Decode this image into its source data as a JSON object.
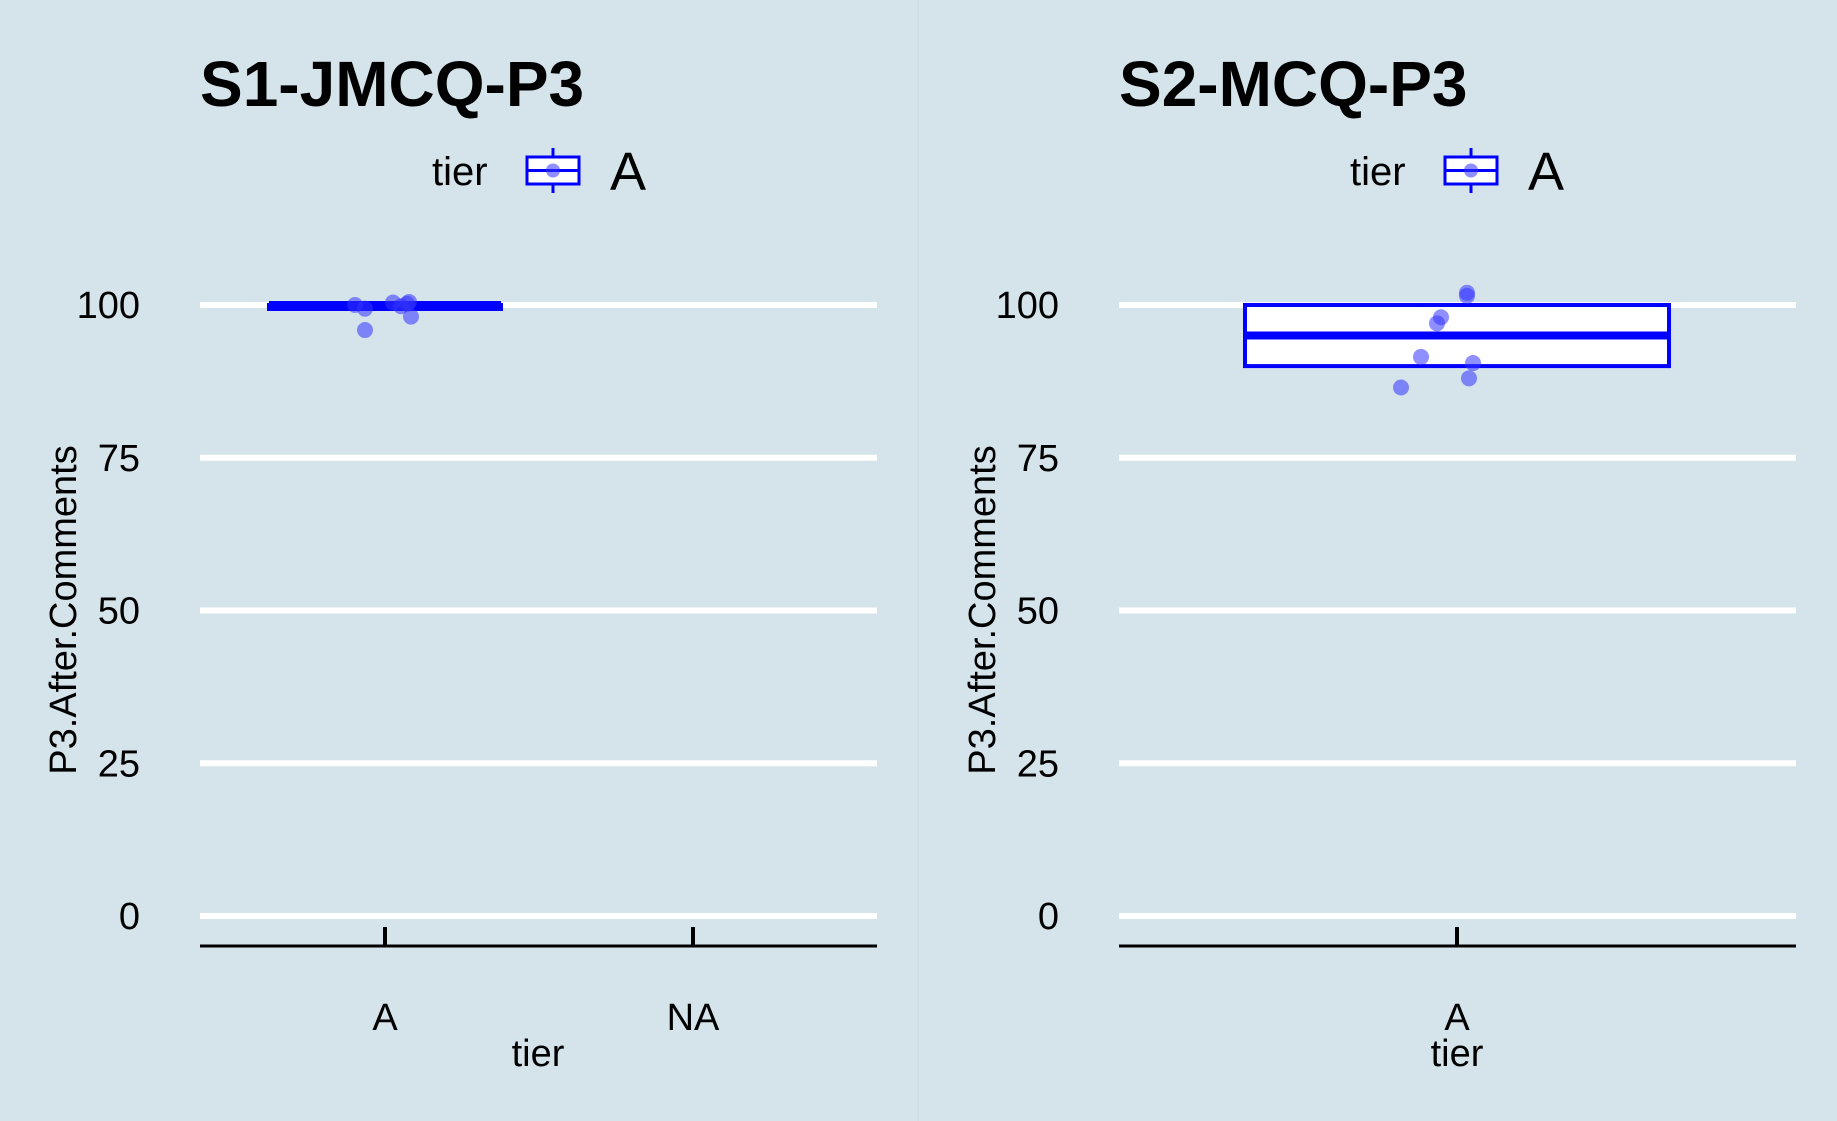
{
  "chart_data": [
    {
      "type": "box",
      "title": "S1-JMCQ-P3",
      "xlabel": "tier",
      "ylabel": "P3.After.Comments",
      "categories": [
        "A",
        "NA"
      ],
      "yticks": [
        0,
        25,
        50,
        75,
        100
      ],
      "ylim": [
        -5,
        112
      ],
      "grid": "horizontal",
      "legend": {
        "title": "tier",
        "entries": [
          "A"
        ],
        "position": "top"
      },
      "box_color": "#0000ff",
      "point_color": "#3333ff",
      "boxes": [
        {
          "category": "A",
          "q1": 99.5,
          "median": 100,
          "q3": 100
        }
      ],
      "points": [
        {
          "category": "A",
          "y": 100
        },
        {
          "category": "A",
          "y": 99.4
        },
        {
          "category": "A",
          "y": 95.9
        },
        {
          "category": "A",
          "y": 100.4
        },
        {
          "category": "A",
          "y": 100.2
        },
        {
          "category": "A",
          "y": 100.5
        },
        {
          "category": "A",
          "y": 99.8
        },
        {
          "category": "A",
          "y": 98.1
        }
      ]
    },
    {
      "type": "box",
      "title": "S2-MCQ-P3",
      "xlabel": "tier",
      "ylabel": "P3.After.Comments",
      "categories": [
        "A"
      ],
      "yticks": [
        0,
        25,
        50,
        75,
        100
      ],
      "ylim": [
        -5,
        112
      ],
      "grid": "horizontal",
      "legend": {
        "title": "tier",
        "entries": [
          "A"
        ],
        "position": "top"
      },
      "box_color": "#0000ff",
      "point_color": "#3333ff",
      "boxes": [
        {
          "category": "A",
          "q1": 90,
          "median": 95,
          "q3": 100
        }
      ],
      "points": [
        {
          "category": "A",
          "y": 102
        },
        {
          "category": "A",
          "y": 101.5
        },
        {
          "category": "A",
          "y": 98
        },
        {
          "category": "A",
          "y": 97
        },
        {
          "category": "A",
          "y": 91.5
        },
        {
          "category": "A",
          "y": 90.5
        },
        {
          "category": "A",
          "y": 88
        },
        {
          "category": "A",
          "y": 86.5
        }
      ]
    }
  ]
}
